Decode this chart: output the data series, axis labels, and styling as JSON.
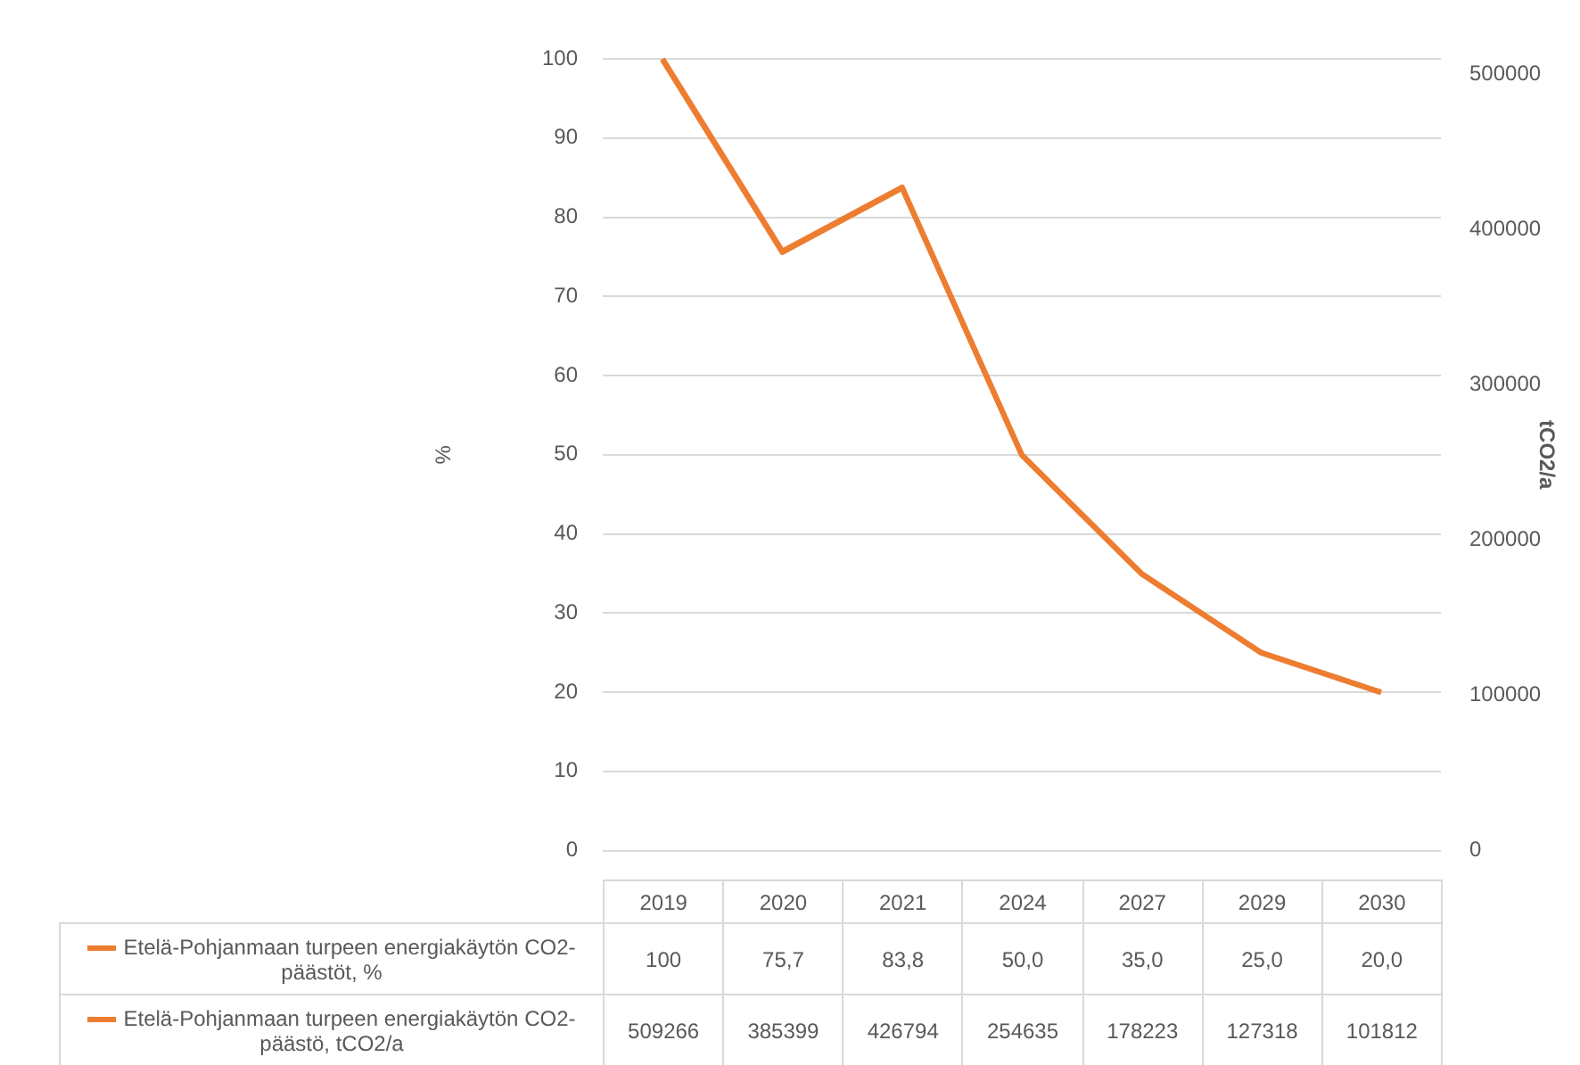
{
  "chart_data": {
    "type": "line",
    "categories": [
      "2019",
      "2020",
      "2021",
      "2024",
      "2027",
      "2029",
      "2030"
    ],
    "series": [
      {
        "name": "Etelä-Pohjanmaan turpeen energiakäytön CO2-päästöt, %",
        "color": "#ed7d31",
        "values": [
          100,
          75.7,
          83.8,
          50.0,
          35.0,
          25.0,
          20.0
        ],
        "value_labels": [
          "100",
          "75,7",
          "83,8",
          "50,0",
          "35,0",
          "25,0",
          "20,0"
        ]
      },
      {
        "name": "Etelä-Pohjanmaan turpeen energiakäytön CO2-päästö, tCO2/a",
        "color": "#ed7d31",
        "axis": "y2",
        "values": [
          509266,
          385399,
          426794,
          254635,
          178223,
          127318,
          101812
        ]
      }
    ],
    "ylabel": "%",
    "y2label": "tCO2/a",
    "ylim": [
      0,
      100
    ],
    "yticks": [
      0,
      10,
      20,
      30,
      40,
      50,
      60,
      70,
      80,
      90,
      100
    ],
    "y2lim": [
      0,
      510000
    ],
    "y2ticks": [
      0,
      100000,
      200000,
      300000,
      400000,
      500000
    ],
    "grid": "y",
    "data_labels": true,
    "legend": "bottom left"
  }
}
